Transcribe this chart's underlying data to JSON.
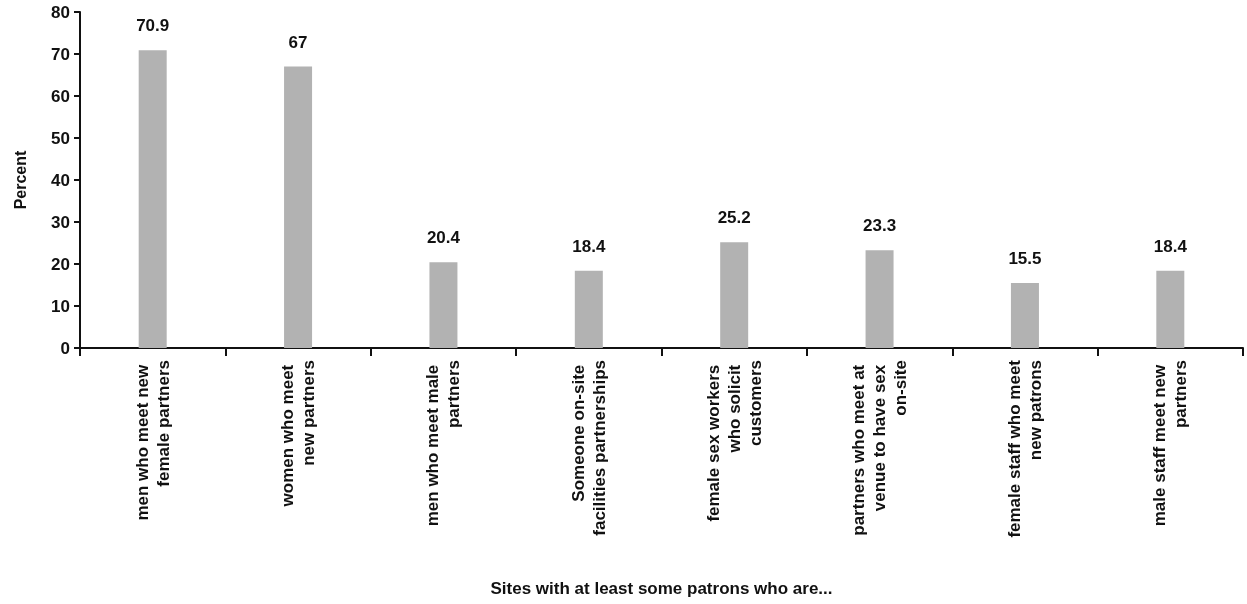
{
  "chart_data": {
    "type": "bar",
    "categories": [
      "men who meet new female partners",
      "women who meet new partners",
      "men who meet male partners",
      "Someone on-site facilities partnerships",
      "female sex workers who solicit customers",
      "partners who meet at venue to have sex on-site",
      "female staff who meet new patrons",
      "male staff meet new partners"
    ],
    "values": [
      70.9,
      67,
      20.4,
      18.4,
      25.2,
      23.3,
      15.5,
      18.4
    ],
    "color": "#b2b2b2",
    "xlabel": "Sites with at least some patrons who are...",
    "ylabel": "Percent",
    "ylim": [
      0,
      80
    ],
    "yticks": [
      0,
      10,
      20,
      30,
      40,
      50,
      60,
      70,
      80
    ],
    "data_labels": true,
    "grid": false
  }
}
